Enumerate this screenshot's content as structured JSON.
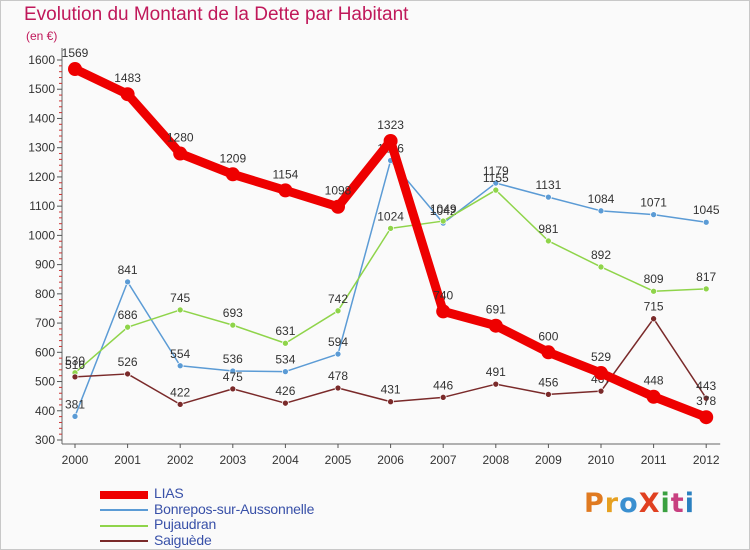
{
  "title": "Evolution du Montant de la Dette par Habitant",
  "unit": "(en €)",
  "logo": {
    "text": "ProXiti",
    "colors": [
      "#e07a20",
      "#e6a020",
      "#3a8fd0",
      "#e04020",
      "#3aa040",
      "#c84080",
      "#2a80c0"
    ]
  },
  "chart_data": {
    "type": "line",
    "title": "Evolution du Montant de la Dette par Habitant",
    "ylabel": "(en €)",
    "xlabel": "",
    "x": [
      "2000",
      "2001",
      "2002",
      "2003",
      "2004",
      "2005",
      "2006",
      "2007",
      "2008",
      "2009",
      "2010",
      "2011",
      "2012"
    ],
    "ylim": [
      300,
      1600
    ],
    "yticks": [
      300,
      400,
      500,
      600,
      700,
      800,
      900,
      1000,
      1100,
      1200,
      1300,
      1400,
      1500,
      1600
    ],
    "grid": false,
    "legend": "bottom-left",
    "series": [
      {
        "name": "Bonrepos-sur-Aussonnelle",
        "color": "#5b9bd5",
        "values": [
          381,
          841,
          554,
          536,
          534,
          594,
          1256,
          1042,
          1179,
          1131,
          1084,
          1071,
          1045
        ]
      },
      {
        "name": "Pujaudran",
        "color": "#8fd44a",
        "values": [
          530,
          686,
          745,
          693,
          631,
          742,
          1024,
          1049,
          1155,
          981,
          892,
          809,
          817
        ]
      },
      {
        "name": "Saiguède",
        "color": "#7a2a2a",
        "values": [
          516,
          526,
          422,
          475,
          426,
          478,
          431,
          446,
          491,
          456,
          467,
          715,
          443
        ]
      },
      {
        "name": "LIAS",
        "color": "#ee0000",
        "values": [
          1569,
          1483,
          1280,
          1209,
          1154,
          1098,
          1323,
          740,
          691,
          600,
          529,
          448,
          378
        ]
      }
    ]
  }
}
